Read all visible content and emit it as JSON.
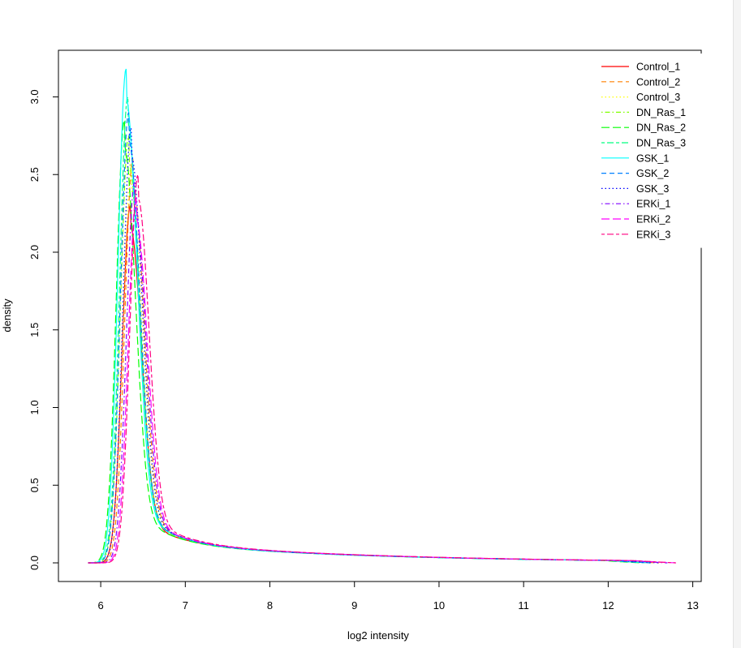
{
  "chart_data": {
    "type": "line",
    "title": "",
    "xlabel": "log2 intensity",
    "ylabel": "density",
    "xlim": [
      5.5,
      13.1
    ],
    "ylim": [
      -0.12,
      3.3
    ],
    "x_ticks": [
      6,
      7,
      8,
      9,
      10,
      11,
      12,
      13
    ],
    "x_tick_labels": [
      "6",
      "7",
      "8",
      "9",
      "10",
      "11",
      "12",
      "13"
    ],
    "y_ticks": [
      0.0,
      0.5,
      1.0,
      1.5,
      2.0,
      2.5,
      3.0
    ],
    "y_tick_labels": [
      "0.0",
      "0.5",
      "1.0",
      "1.5",
      "2.0",
      "2.5",
      "3.0"
    ],
    "grid": false,
    "legend_position": "top-right",
    "series": [
      {
        "name": "Control_1",
        "color": "#ff0000",
        "dash": "solid",
        "peak_x": 6.35,
        "peak_y": 2.3,
        "x_min": 5.85,
        "x_max": 12.5
      },
      {
        "name": "Control_2",
        "color": "#ff8000",
        "dash": "dashed",
        "peak_x": 6.38,
        "peak_y": 2.6,
        "x_min": 5.85,
        "x_max": 12.6
      },
      {
        "name": "Control_3",
        "color": "#ffff00",
        "dash": "dotted",
        "peak_x": 6.36,
        "peak_y": 2.55,
        "x_min": 5.85,
        "x_max": 12.5
      },
      {
        "name": "DN_Ras_1",
        "color": "#80ff00",
        "dash": "dotdash",
        "peak_x": 6.33,
        "peak_y": 2.75,
        "x_min": 5.85,
        "x_max": 12.5
      },
      {
        "name": "DN_Ras_2",
        "color": "#00ff00",
        "dash": "longdash",
        "peak_x": 6.28,
        "peak_y": 2.85,
        "x_min": 5.85,
        "x_max": 12.4
      },
      {
        "name": "DN_Ras_3",
        "color": "#00ff80",
        "dash": "twodash",
        "peak_x": 6.32,
        "peak_y": 3.0,
        "x_min": 5.85,
        "x_max": 12.5
      },
      {
        "name": "GSK_1",
        "color": "#00ffff",
        "dash": "solid",
        "peak_x": 6.3,
        "peak_y": 3.18,
        "x_min": 5.85,
        "x_max": 12.5
      },
      {
        "name": "GSK_2",
        "color": "#0080ff",
        "dash": "dashed",
        "peak_x": 6.33,
        "peak_y": 2.9,
        "x_min": 5.85,
        "x_max": 12.5
      },
      {
        "name": "GSK_3",
        "color": "#0000ff",
        "dash": "dotted",
        "peak_x": 6.36,
        "peak_y": 2.8,
        "x_min": 5.85,
        "x_max": 12.6
      },
      {
        "name": "ERKi_1",
        "color": "#8000ff",
        "dash": "dotdash",
        "peak_x": 6.4,
        "peak_y": 2.45,
        "x_min": 5.85,
        "x_max": 12.7
      },
      {
        "name": "ERKi_2",
        "color": "#ff00ff",
        "dash": "longdash",
        "peak_x": 6.42,
        "peak_y": 2.35,
        "x_min": 5.85,
        "x_max": 12.8
      },
      {
        "name": "ERKi_3",
        "color": "#ff0080",
        "dash": "twodash",
        "peak_x": 6.44,
        "peak_y": 2.5,
        "x_min": 5.85,
        "x_max": 12.8
      }
    ]
  }
}
